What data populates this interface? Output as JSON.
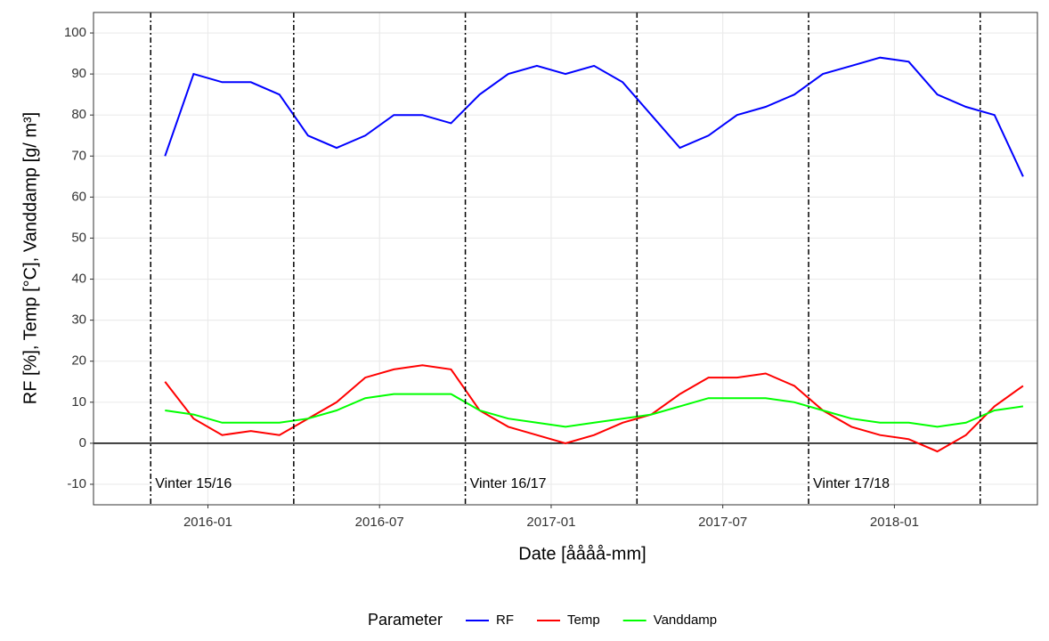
{
  "chart_data": {
    "type": "line",
    "x_label": "Date [åååå-mm]",
    "y_label": "RF [%], Temp [°C], Vanddamp [g/ m³]",
    "x": [
      "2015-11",
      "2015-12",
      "2016-01",
      "2016-02",
      "2016-03",
      "2016-04",
      "2016-05",
      "2016-06",
      "2016-07",
      "2016-08",
      "2016-09",
      "2016-10",
      "2016-11",
      "2016-12",
      "2017-01",
      "2017-02",
      "2017-03",
      "2017-04",
      "2017-05",
      "2017-06",
      "2017-07",
      "2017-08",
      "2017-09",
      "2017-10",
      "2017-11",
      "2017-12",
      "2018-01",
      "2018-02",
      "2018-03",
      "2018-04",
      "2018-05"
    ],
    "series": [
      {
        "name": "RF",
        "color": "#0000ff",
        "values": [
          70,
          90,
          88,
          88,
          85,
          75,
          72,
          75,
          80,
          80,
          78,
          85,
          90,
          92,
          90,
          92,
          88,
          80,
          72,
          75,
          80,
          82,
          85,
          90,
          92,
          94,
          93,
          85,
          82,
          80,
          65
        ]
      },
      {
        "name": "Temp",
        "color": "#ff0000",
        "values": [
          15,
          6,
          2,
          3,
          2,
          6,
          10,
          16,
          18,
          19,
          18,
          8,
          4,
          2,
          0,
          2,
          5,
          7,
          12,
          16,
          16,
          17,
          14,
          8,
          4,
          2,
          1,
          -2,
          2,
          9,
          14
        ]
      },
      {
        "name": "Vanddamp",
        "color": "#00ff00",
        "values": [
          8,
          7,
          5,
          5,
          5,
          6,
          8,
          11,
          12,
          12,
          12,
          8,
          6,
          5,
          4,
          5,
          6,
          7,
          9,
          11,
          11,
          11,
          10,
          8,
          6,
          5,
          5,
          4,
          5,
          8,
          9
        ]
      }
    ],
    "xlim": [
      "2015-09",
      "2018-06"
    ],
    "xticks": [
      "2016-01",
      "2016-07",
      "2017-01",
      "2017-07",
      "2018-01"
    ],
    "ylim": [
      -15,
      105
    ],
    "yticks": [
      -10,
      0,
      10,
      20,
      30,
      40,
      50,
      60,
      70,
      80,
      90,
      100
    ],
    "hline": 0,
    "vlines": [
      "2015-11",
      "2016-04",
      "2016-10",
      "2017-04",
      "2017-10",
      "2018-04"
    ],
    "annotations": [
      "Vinter 15/16",
      "Vinter 16/17",
      "Vinter 17/18"
    ],
    "legend_title": "Parameter",
    "legend_position": "bottom",
    "grid": true
  }
}
